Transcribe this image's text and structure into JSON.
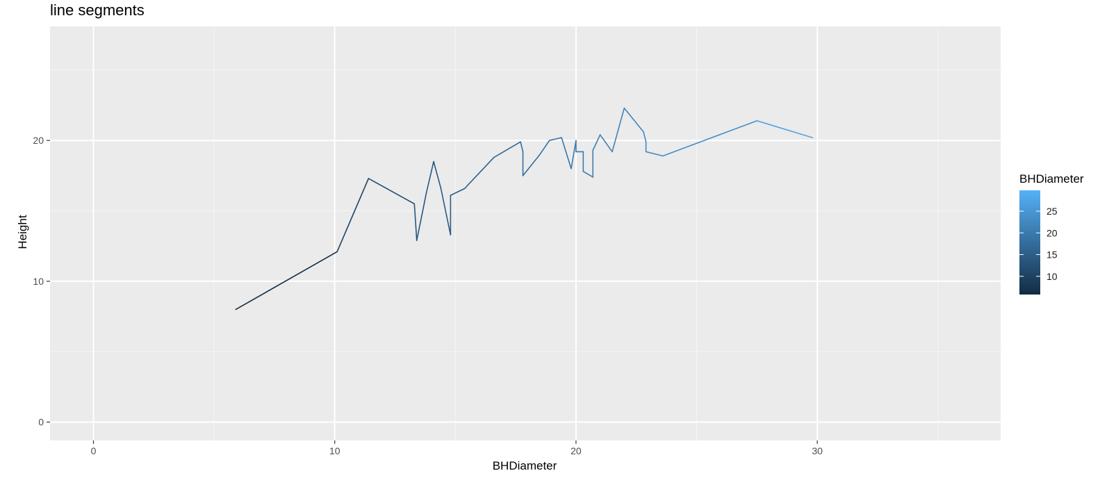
{
  "chart_data": {
    "type": "line",
    "title": "line segments",
    "xlabel": "BHDiameter",
    "ylabel": "Height",
    "xlim": [
      -1.8,
      37.6
    ],
    "ylim": [
      -1.3,
      28.1
    ],
    "x_ticks": [
      0,
      10,
      20,
      30
    ],
    "y_ticks": [
      0,
      10,
      20
    ],
    "grid": true,
    "legend_position": "right",
    "color_scale": {
      "title": "BHDiameter",
      "low_color": "#132B43",
      "high_color": "#56B1F7",
      "min": 5.8,
      "max": 29.8,
      "ticks": [
        10,
        15,
        20,
        25
      ]
    },
    "series": [
      {
        "x": [
          5.9,
          10.1,
          11.4,
          13.3,
          13.4,
          13.8,
          14.1,
          14.4,
          14.8,
          14.8,
          15.4,
          15.5,
          16.6,
          17.7,
          17.8,
          17.8,
          18.5,
          18.9,
          19.4,
          19.8,
          20.0,
          20.0,
          20.1,
          20.3,
          20.3,
          20.7,
          20.7,
          21.0,
          21.5,
          22.0,
          22.8,
          22.9,
          22.9,
          23.6,
          27.5,
          29.8
        ],
        "y": [
          8.0,
          12.1,
          17.3,
          15.5,
          12.9,
          16.3,
          18.5,
          16.6,
          13.3,
          16.1,
          16.6,
          16.8,
          18.8,
          19.9,
          19.2,
          17.5,
          19.0,
          20.0,
          20.2,
          18.0,
          20.0,
          19.2,
          19.2,
          19.2,
          17.8,
          17.4,
          19.3,
          20.4,
          19.2,
          22.3,
          20.6,
          19.9,
          19.2,
          18.9,
          21.4,
          20.2
        ]
      }
    ]
  },
  "colors": {
    "panel_bg": "#ebebeb",
    "grid_major": "#ffffff",
    "grid_minor": "#f5f5f5",
    "tick_mark": "#333333"
  }
}
